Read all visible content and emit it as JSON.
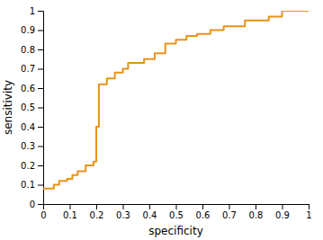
{
  "chart_data": {
    "type": "line",
    "xlabel": "specificity",
    "ylabel": "sensitivity",
    "color": "#E8921A",
    "xlim": [
      0,
      1
    ],
    "ylim": [
      0,
      1
    ],
    "xticks": [
      0,
      0.1,
      0.2,
      0.3,
      0.4,
      0.5,
      0.6,
      0.7,
      0.8,
      0.9,
      1
    ],
    "yticks": [
      0,
      0.1,
      0.2,
      0.3,
      0.4,
      0.5,
      0.6,
      0.7,
      0.8,
      0.9,
      1
    ],
    "x": [
      0.0,
      0.04,
      0.04,
      0.06,
      0.06,
      0.09,
      0.09,
      0.11,
      0.11,
      0.13,
      0.13,
      0.16,
      0.16,
      0.19,
      0.19,
      0.2,
      0.2,
      0.21,
      0.21,
      0.24,
      0.24,
      0.27,
      0.27,
      0.3,
      0.3,
      0.32,
      0.32,
      0.38,
      0.38,
      0.42,
      0.42,
      0.46,
      0.46,
      0.5,
      0.5,
      0.54,
      0.54,
      0.58,
      0.58,
      0.63,
      0.63,
      0.68,
      0.68,
      0.76,
      0.76,
      0.85,
      0.85,
      0.9,
      0.9,
      1.0
    ],
    "values": [
      0.08,
      0.08,
      0.1,
      0.1,
      0.12,
      0.12,
      0.13,
      0.13,
      0.15,
      0.15,
      0.17,
      0.17,
      0.2,
      0.2,
      0.22,
      0.22,
      0.4,
      0.4,
      0.62,
      0.62,
      0.65,
      0.65,
      0.68,
      0.68,
      0.7,
      0.7,
      0.73,
      0.73,
      0.75,
      0.75,
      0.78,
      0.78,
      0.83,
      0.83,
      0.85,
      0.85,
      0.87,
      0.87,
      0.88,
      0.88,
      0.9,
      0.9,
      0.92,
      0.92,
      0.95,
      0.95,
      0.97,
      0.97,
      1.0,
      1.0
    ]
  }
}
